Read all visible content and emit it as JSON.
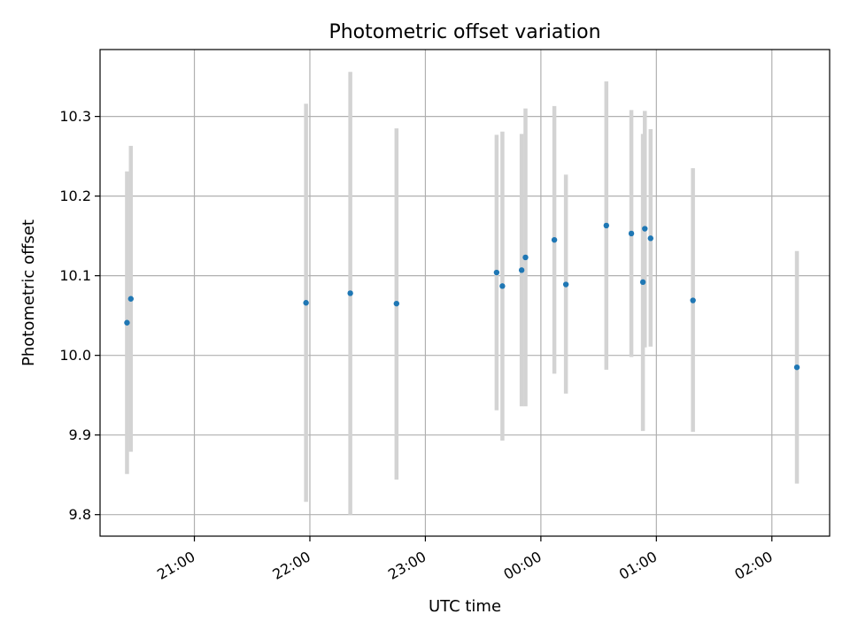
{
  "chart_data": {
    "type": "scatter",
    "title": "Photometric offset variation",
    "xlabel": "UTC time",
    "ylabel": "Photometric offset",
    "grid": true,
    "ylim": [
      9.773,
      10.384
    ],
    "xlim": [
      "2023-01-01T20:11:00",
      "2023-01-02T02:30:00"
    ],
    "x_ticks": [
      {
        "t": "2023-01-01T21:00:00",
        "label": "21:00"
      },
      {
        "t": "2023-01-01T22:00:00",
        "label": "22:00"
      },
      {
        "t": "2023-01-01T23:00:00",
        "label": "23:00"
      },
      {
        "t": "2023-01-02T00:00:00",
        "label": "00:00"
      },
      {
        "t": "2023-01-02T01:00:00",
        "label": "01:00"
      },
      {
        "t": "2023-01-02T02:00:00",
        "label": "02:00"
      }
    ],
    "y_ticks": [
      {
        "v": 9.8,
        "label": "9.8"
      },
      {
        "v": 9.9,
        "label": "9.9"
      },
      {
        "v": 10.0,
        "label": "10.0"
      },
      {
        "v": 10.1,
        "label": "10.1"
      },
      {
        "v": 10.2,
        "label": "10.2"
      },
      {
        "v": 10.3,
        "label": "10.3"
      }
    ],
    "colors": {
      "point": "#1f77b4",
      "errorbar": "#d3d3d3",
      "grid": "#b0b0b0"
    },
    "points": [
      {
        "t": "2023-01-01T20:25:00",
        "y": 10.041,
        "lo": 9.851,
        "hi": 10.231
      },
      {
        "t": "2023-01-01T20:27:00",
        "y": 10.071,
        "lo": 9.879,
        "hi": 10.263
      },
      {
        "t": "2023-01-01T21:58:00",
        "y": 10.066,
        "lo": 9.816,
        "hi": 10.316
      },
      {
        "t": "2023-01-01T22:21:00",
        "y": 10.078,
        "lo": 9.8,
        "hi": 10.356
      },
      {
        "t": "2023-01-01T22:45:00",
        "y": 10.065,
        "lo": 9.844,
        "hi": 10.285
      },
      {
        "t": "2023-01-01T23:37:00",
        "y": 10.104,
        "lo": 9.931,
        "hi": 10.277
      },
      {
        "t": "2023-01-01T23:40:00",
        "y": 10.087,
        "lo": 9.893,
        "hi": 10.281
      },
      {
        "t": "2023-01-01T23:50:00",
        "y": 10.107,
        "lo": 9.936,
        "hi": 10.278
      },
      {
        "t": "2023-01-01T23:52:00",
        "y": 10.123,
        "lo": 9.936,
        "hi": 10.31
      },
      {
        "t": "2023-01-02T00:07:00",
        "y": 10.145,
        "lo": 9.977,
        "hi": 10.313
      },
      {
        "t": "2023-01-02T00:13:00",
        "y": 10.089,
        "lo": 9.952,
        "hi": 10.227
      },
      {
        "t": "2023-01-02T00:34:00",
        "y": 10.163,
        "lo": 9.982,
        "hi": 10.344
      },
      {
        "t": "2023-01-02T00:47:00",
        "y": 10.153,
        "lo": 9.998,
        "hi": 10.308
      },
      {
        "t": "2023-01-02T00:53:00",
        "y": 10.092,
        "lo": 9.905,
        "hi": 10.278
      },
      {
        "t": "2023-01-02T00:54:00",
        "y": 10.159,
        "lo": 10.01,
        "hi": 10.307
      },
      {
        "t": "2023-01-02T00:57:00",
        "y": 10.147,
        "lo": 10.011,
        "hi": 10.284
      },
      {
        "t": "2023-01-02T01:19:00",
        "y": 10.069,
        "lo": 9.904,
        "hi": 10.235
      },
      {
        "t": "2023-01-02T02:13:00",
        "y": 9.985,
        "lo": 9.839,
        "hi": 10.131
      }
    ]
  }
}
